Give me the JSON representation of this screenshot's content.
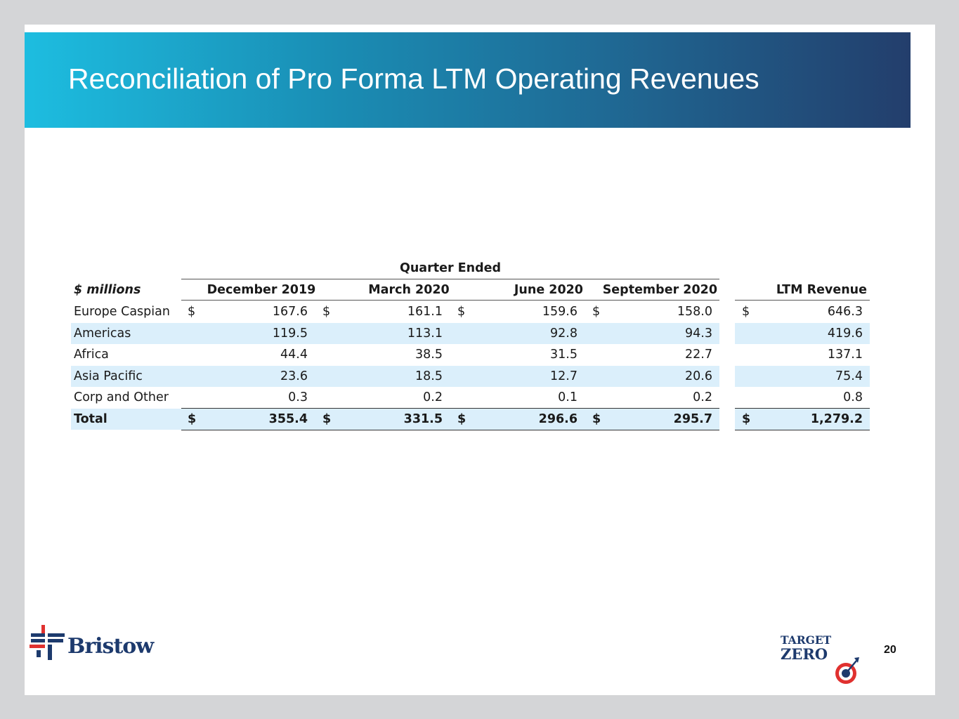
{
  "title": "Reconciliation of Pro Forma LTM Operating Revenues",
  "table": {
    "group_header": "Quarter Ended",
    "unit_label": "$ millions",
    "columns": [
      "December 2019",
      "March 2020",
      "June 2020",
      "September 2020"
    ],
    "ltm_header": "LTM Revenue",
    "currency_symbol": "$",
    "rows": [
      {
        "label": "Europe Caspian",
        "values": [
          "167.6",
          "161.1",
          "159.6",
          "158.0"
        ],
        "ltm": "646.3",
        "shaded": false,
        "dollar": true,
        "bold": false
      },
      {
        "label": "Americas",
        "values": [
          "119.5",
          "113.1",
          "92.8",
          "94.3"
        ],
        "ltm": "419.6",
        "shaded": true,
        "dollar": false,
        "bold": false
      },
      {
        "label": "Africa",
        "values": [
          "44.4",
          "38.5",
          "31.5",
          "22.7"
        ],
        "ltm": "137.1",
        "shaded": false,
        "dollar": false,
        "bold": false
      },
      {
        "label": "Asia Pacific",
        "values": [
          "23.6",
          "18.5",
          "12.7",
          "20.6"
        ],
        "ltm": "75.4",
        "shaded": true,
        "dollar": false,
        "bold": false
      },
      {
        "label": "Corp and Other",
        "values": [
          "0.3",
          "0.2",
          "0.1",
          "0.2"
        ],
        "ltm": "0.8",
        "shaded": false,
        "dollar": false,
        "bold": false
      },
      {
        "label": "Total",
        "values": [
          "355.4",
          "331.5",
          "296.6",
          "295.7"
        ],
        "ltm": "1,279.2",
        "shaded": true,
        "dollar": true,
        "bold": true
      }
    ]
  },
  "footer": {
    "brand_name": "Bristow",
    "target_line1": "TARGET",
    "target_line2": "ZERO",
    "page_number": "20"
  },
  "colors": {
    "title_gradient_start": "#1dbde0",
    "title_gradient_end": "#233e6c",
    "row_shade": "#dbeffb",
    "brand_navy": "#1d3a6d",
    "brand_red": "#e0312f"
  }
}
